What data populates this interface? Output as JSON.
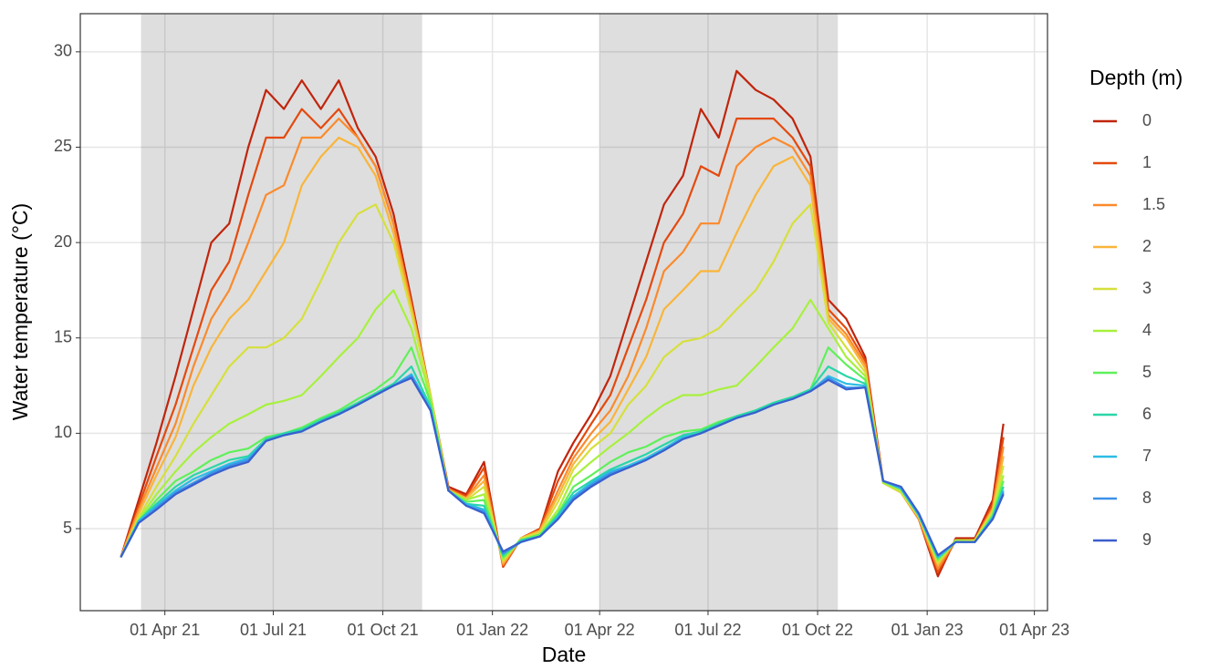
{
  "chart_data": {
    "type": "line",
    "x_label": "Date",
    "y_label": "Water temperature (°C)",
    "legend_title": "Depth (m)",
    "legend_position": "right",
    "grid": true,
    "xlim": [
      "2021-01-20",
      "2023-04-12"
    ],
    "xticks": [
      {
        "value": "2021-04-01",
        "label": "01 Apr 21"
      },
      {
        "value": "2021-07-01",
        "label": "01 Jul 21"
      },
      {
        "value": "2021-10-01",
        "label": "01 Oct 21"
      },
      {
        "value": "2022-01-01",
        "label": "01 Jan 22"
      },
      {
        "value": "2022-04-01",
        "label": "01 Apr 22"
      },
      {
        "value": "2022-07-01",
        "label": "01 Jul 22"
      },
      {
        "value": "2022-10-01",
        "label": "01 Oct 22"
      },
      {
        "value": "2023-01-01",
        "label": "01 Jan 23"
      },
      {
        "value": "2023-04-01",
        "label": "01 Apr 23"
      }
    ],
    "ylim": [
      0.7,
      32.0
    ],
    "yticks": [
      5,
      10,
      15,
      20,
      25,
      30
    ],
    "shaded_periods": [
      {
        "start": "2021-03-12",
        "end": "2021-11-03"
      },
      {
        "start": "2022-04-01",
        "end": "2022-10-18"
      }
    ],
    "x": [
      "2021-02-23",
      "2021-03-10",
      "2021-03-25",
      "2021-04-10",
      "2021-04-25",
      "2021-05-10",
      "2021-05-25",
      "2021-06-10",
      "2021-06-25",
      "2021-07-10",
      "2021-07-25",
      "2021-08-10",
      "2021-08-25",
      "2021-09-10",
      "2021-09-25",
      "2021-10-10",
      "2021-10-25",
      "2021-11-10",
      "2021-11-25",
      "2021-12-10",
      "2021-12-25",
      "2022-01-10",
      "2022-01-25",
      "2022-02-10",
      "2022-02-25",
      "2022-03-10",
      "2022-03-25",
      "2022-04-10",
      "2022-04-25",
      "2022-05-10",
      "2022-05-25",
      "2022-06-10",
      "2022-06-25",
      "2022-07-10",
      "2022-07-25",
      "2022-08-10",
      "2022-08-25",
      "2022-09-10",
      "2022-09-25",
      "2022-10-10",
      "2022-10-25",
      "2022-11-10",
      "2022-11-25",
      "2022-12-10",
      "2022-12-25",
      "2023-01-10",
      "2023-01-25",
      "2023-02-10",
      "2023-02-25",
      "2023-03-06"
    ],
    "series": [
      {
        "name": "0",
        "color": "#c0250c",
        "values": [
          3.5,
          6.5,
          9.5,
          13.0,
          16.5,
          20.0,
          21.0,
          25.0,
          28.0,
          27.0,
          28.5,
          27.0,
          28.5,
          26.0,
          24.5,
          21.5,
          17.0,
          12.0,
          7.2,
          6.8,
          8.5,
          3.0,
          4.5,
          5.0,
          8.0,
          9.5,
          11.0,
          13.0,
          16.0,
          19.0,
          22.0,
          23.5,
          27.0,
          25.5,
          29.0,
          28.0,
          27.5,
          26.5,
          24.5,
          17.0,
          16.0,
          14.0,
          7.5,
          7.0,
          5.5,
          2.5,
          4.5,
          4.5,
          6.5,
          10.5
        ]
      },
      {
        "name": "1",
        "color": "#e4490d",
        "values": [
          3.5,
          6.2,
          8.8,
          11.5,
          14.5,
          17.5,
          19.0,
          22.5,
          25.5,
          25.5,
          27.0,
          26.0,
          27.0,
          25.5,
          24.0,
          21.0,
          16.8,
          12.0,
          7.1,
          6.7,
          8.2,
          3.0,
          4.5,
          5.0,
          7.5,
          9.0,
          10.5,
          12.0,
          14.5,
          17.0,
          20.0,
          21.5,
          24.0,
          23.5,
          26.5,
          26.5,
          26.5,
          25.5,
          24.0,
          16.5,
          15.5,
          13.8,
          7.4,
          6.9,
          5.5,
          2.7,
          4.4,
          4.4,
          6.3,
          9.8
        ]
      },
      {
        "name": "1.5",
        "color": "#fb8a2c",
        "values": [
          3.5,
          6.0,
          8.2,
          10.5,
          13.5,
          16.0,
          17.5,
          20.0,
          22.5,
          23.0,
          25.5,
          25.5,
          26.5,
          25.5,
          24.0,
          21.0,
          16.7,
          12.0,
          7.1,
          6.6,
          7.8,
          3.1,
          4.5,
          4.9,
          7.0,
          8.7,
          10.0,
          11.2,
          13.0,
          15.5,
          18.5,
          19.5,
          21.0,
          21.0,
          24.0,
          25.0,
          25.5,
          25.0,
          23.5,
          16.2,
          15.2,
          13.6,
          7.4,
          6.9,
          5.5,
          2.9,
          4.4,
          4.4,
          6.1,
          9.3
        ]
      },
      {
        "name": "2",
        "color": "#f9b53a",
        "values": [
          3.5,
          5.8,
          7.8,
          9.8,
          12.5,
          14.5,
          16.0,
          17.0,
          18.5,
          20.0,
          23.0,
          24.5,
          25.5,
          25.0,
          23.5,
          20.5,
          16.5,
          12.0,
          7.0,
          6.6,
          7.5,
          3.2,
          4.5,
          4.9,
          6.7,
          8.4,
          9.6,
          10.6,
          12.3,
          14.0,
          16.5,
          17.5,
          18.5,
          18.5,
          20.5,
          22.5,
          24.0,
          24.5,
          23.0,
          16.0,
          15.0,
          13.4,
          7.4,
          6.9,
          5.6,
          3.1,
          4.4,
          4.4,
          6.0,
          8.8
        ]
      },
      {
        "name": "3",
        "color": "#d6e03b",
        "values": [
          3.5,
          5.6,
          7.2,
          8.8,
          10.5,
          12.0,
          13.5,
          14.5,
          14.5,
          15.0,
          16.0,
          18.0,
          20.0,
          21.5,
          22.0,
          20.0,
          16.3,
          12.0,
          7.0,
          6.5,
          7.2,
          3.3,
          4.5,
          4.8,
          6.4,
          8.1,
          9.2,
          10.0,
          11.5,
          12.5,
          14.0,
          14.8,
          15.0,
          15.5,
          16.5,
          17.5,
          19.0,
          21.0,
          22.0,
          15.8,
          14.5,
          13.2,
          7.4,
          6.9,
          5.6,
          3.2,
          4.4,
          4.4,
          5.9,
          8.3
        ]
      },
      {
        "name": "4",
        "color": "#a8f03e",
        "values": [
          3.5,
          5.5,
          6.8,
          8.0,
          9.0,
          9.8,
          10.5,
          11.0,
          11.5,
          11.7,
          12.0,
          13.0,
          14.0,
          15.0,
          16.5,
          17.5,
          15.5,
          11.8,
          7.0,
          6.5,
          6.8,
          3.4,
          4.4,
          4.7,
          6.0,
          7.7,
          8.5,
          9.3,
          10.0,
          10.8,
          11.5,
          12.0,
          12.0,
          12.3,
          12.5,
          13.5,
          14.5,
          15.5,
          17.0,
          15.5,
          14.0,
          13.0,
          7.4,
          7.0,
          5.7,
          3.3,
          4.4,
          4.3,
          5.8,
          7.8
        ]
      },
      {
        "name": "5",
        "color": "#5ff05a",
        "values": [
          3.5,
          5.4,
          6.5,
          7.5,
          8.0,
          8.6,
          9.0,
          9.2,
          9.8,
          10.0,
          10.3,
          10.8,
          11.2,
          11.8,
          12.3,
          13.0,
          14.5,
          11.6,
          7.0,
          6.4,
          6.5,
          3.5,
          4.4,
          4.7,
          5.8,
          7.2,
          7.8,
          8.5,
          9.0,
          9.3,
          9.8,
          10.1,
          10.2,
          10.6,
          10.9,
          11.2,
          11.6,
          11.9,
          12.3,
          14.5,
          13.6,
          12.8,
          7.5,
          7.1,
          5.7,
          3.4,
          4.3,
          4.3,
          5.7,
          7.5
        ]
      },
      {
        "name": "6",
        "color": "#2ad6a7",
        "values": [
          3.5,
          5.4,
          6.3,
          7.2,
          7.8,
          8.2,
          8.6,
          8.8,
          9.7,
          10.0,
          10.2,
          10.7,
          11.1,
          11.6,
          12.1,
          12.6,
          13.5,
          11.4,
          7.0,
          6.3,
          6.2,
          3.6,
          4.4,
          4.6,
          5.7,
          6.9,
          7.5,
          8.1,
          8.5,
          8.9,
          9.4,
          9.9,
          10.1,
          10.5,
          10.9,
          11.2,
          11.6,
          11.9,
          12.3,
          13.5,
          13.0,
          12.6,
          7.5,
          7.1,
          5.7,
          3.5,
          4.3,
          4.3,
          5.6,
          7.2
        ]
      },
      {
        "name": "7",
        "color": "#2cbde4",
        "values": [
          3.5,
          5.4,
          6.2,
          7.0,
          7.6,
          8.0,
          8.4,
          8.7,
          9.6,
          9.9,
          10.1,
          10.6,
          11.0,
          11.5,
          12.0,
          12.5,
          13.1,
          11.3,
          7.0,
          6.3,
          6.0,
          3.7,
          4.3,
          4.6,
          5.6,
          6.7,
          7.4,
          8.0,
          8.3,
          8.7,
          9.2,
          9.8,
          10.0,
          10.4,
          10.8,
          11.1,
          11.5,
          11.8,
          12.2,
          13.0,
          12.6,
          12.5,
          7.5,
          7.1,
          5.7,
          3.5,
          4.3,
          4.3,
          5.6,
          7.0
        ]
      },
      {
        "name": "8",
        "color": "#3d91e8",
        "values": [
          3.5,
          5.3,
          6.1,
          6.9,
          7.4,
          7.9,
          8.3,
          8.6,
          9.6,
          9.9,
          10.1,
          10.6,
          11.0,
          11.5,
          12.0,
          12.5,
          13.0,
          11.2,
          7.0,
          6.2,
          5.9,
          3.7,
          4.3,
          4.6,
          5.5,
          6.6,
          7.3,
          7.9,
          8.2,
          8.6,
          9.1,
          9.7,
          10.0,
          10.4,
          10.8,
          11.1,
          11.5,
          11.8,
          12.2,
          12.9,
          12.4,
          12.4,
          7.5,
          7.2,
          5.8,
          3.6,
          4.3,
          4.3,
          5.5,
          6.9
        ]
      },
      {
        "name": "9",
        "color": "#3a5fcd",
        "values": [
          3.5,
          5.3,
          6.0,
          6.8,
          7.3,
          7.8,
          8.2,
          8.5,
          9.6,
          9.9,
          10.1,
          10.6,
          11.0,
          11.5,
          12.0,
          12.5,
          12.9,
          11.2,
          7.0,
          6.2,
          5.8,
          3.8,
          4.3,
          4.6,
          5.5,
          6.5,
          7.2,
          7.8,
          8.2,
          8.6,
          9.1,
          9.7,
          10.0,
          10.4,
          10.8,
          11.1,
          11.5,
          11.8,
          12.2,
          12.8,
          12.3,
          12.4,
          7.5,
          7.2,
          5.8,
          3.6,
          4.3,
          4.3,
          5.5,
          6.8
        ]
      }
    ]
  }
}
